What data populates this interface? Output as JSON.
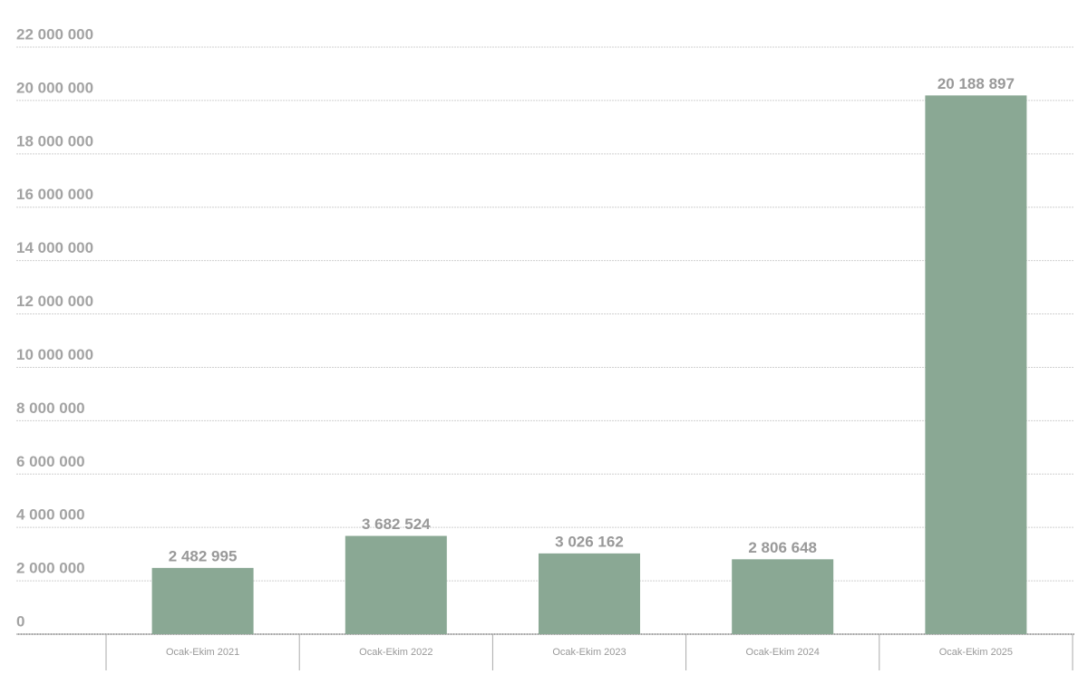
{
  "chart_data": {
    "type": "bar",
    "categories": [
      "Ocak-Ekim 2021",
      "Ocak-Ekim 2022",
      "Ocak-Ekim 2023",
      "Ocak-Ekim 2024",
      "Ocak-Ekim 2025"
    ],
    "values": [
      2482995,
      3682524,
      3026162,
      2806648,
      20188897
    ],
    "value_labels": [
      "2 482 995",
      "3 682 524",
      "3 026 162",
      "2 806 648",
      "20 188 897"
    ],
    "color": "#8aa894",
    "ylim": [
      0,
      22000000
    ],
    "yticks": [
      0,
      {
        "value": 2000000,
        "label": "2 000 000"
      },
      {
        "value": 4000000,
        "label": "4 000 000"
      },
      {
        "value": 6000000,
        "label": "6 000 000"
      },
      {
        "value": 8000000,
        "label": "8 000 000"
      },
      {
        "value": 10000000,
        "label": "10 000 000"
      },
      {
        "value": 12000000,
        "label": "12 000 000"
      },
      {
        "value": 14000000,
        "label": "14 000 000"
      },
      {
        "value": 16000000,
        "label": "16 000 000"
      },
      {
        "value": 18000000,
        "label": "18 000 000"
      },
      {
        "value": 20000000,
        "label": "20 000 000"
      },
      {
        "value": 22000000,
        "label": "22 000 000"
      }
    ],
    "grid": true
  }
}
